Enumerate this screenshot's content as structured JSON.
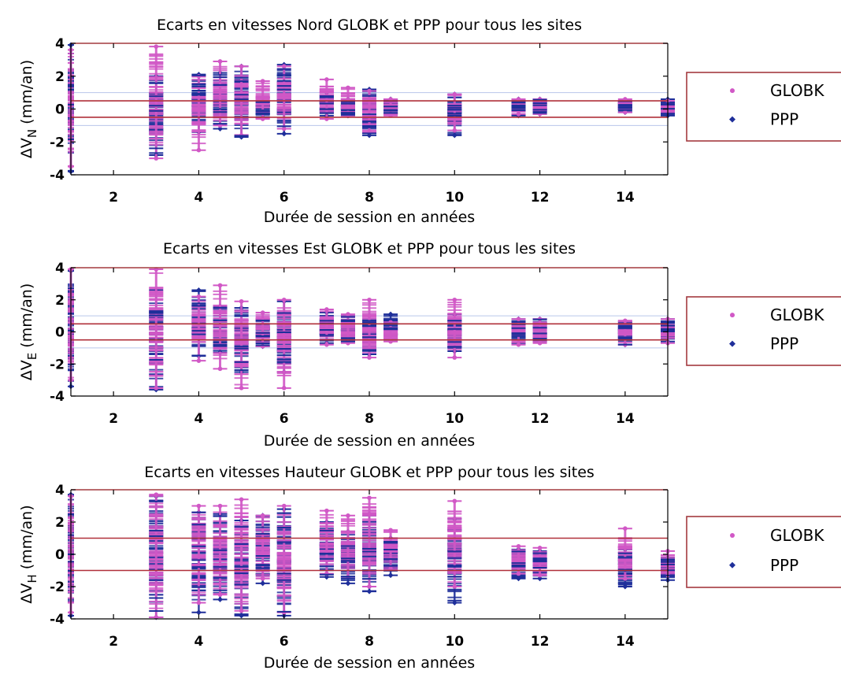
{
  "chart_data": [
    {
      "type": "scatter",
      "title": "Ecarts en vitesses Nord GLOBK et PPP pour tous les sites",
      "xlabel": "Durée de session en années",
      "ylabel_base": "ΔV",
      "ylabel_sub": "N",
      "ylabel_unit": " (mm/an)",
      "xlim": [
        1,
        15
      ],
      "ylim": [
        -4,
        4
      ],
      "xticks": [
        2,
        4,
        6,
        8,
        10,
        12,
        14
      ],
      "yticks": [
        4,
        2,
        0,
        -2,
        -4
      ],
      "hlines": [
        0.5,
        -0.5
      ],
      "legend": {
        "position": "outside-right",
        "entries": [
          "GLOBK",
          "PPP"
        ]
      },
      "series": [
        {
          "name": "GLOBK",
          "color": "#d158c6",
          "marker": "dot"
        },
        {
          "name": "PPP",
          "color": "#1f2f9a",
          "marker": "diamond"
        }
      ],
      "columns": [
        {
          "x": 1.0,
          "globk": [
            -3.5,
            3.6
          ],
          "ppp": [
            -3.8,
            3.9
          ]
        },
        {
          "x": 3.0,
          "globk": [
            -3.0,
            3.8
          ],
          "ppp": [
            -2.8,
            2.0
          ]
        },
        {
          "x": 4.0,
          "globk": [
            -2.5,
            2.0
          ],
          "ppp": [
            -1.4,
            2.1
          ]
        },
        {
          "x": 4.5,
          "globk": [
            -1.0,
            2.9
          ],
          "ppp": [
            -1.2,
            2.2
          ]
        },
        {
          "x": 5.0,
          "globk": [
            -1.6,
            2.6
          ],
          "ppp": [
            -1.7,
            2.6
          ]
        },
        {
          "x": 5.5,
          "globk": [
            -0.6,
            1.7
          ],
          "ppp": [
            -0.5,
            0.7
          ]
        },
        {
          "x": 6.0,
          "globk": [
            -1.2,
            2.6
          ],
          "ppp": [
            -1.5,
            2.7
          ]
        },
        {
          "x": 7.0,
          "globk": [
            -0.6,
            1.8
          ],
          "ppp": [
            -0.4,
            1.0
          ]
        },
        {
          "x": 7.5,
          "globk": [
            -0.4,
            1.3
          ],
          "ppp": [
            -0.4,
            0.6
          ]
        },
        {
          "x": 8.0,
          "globk": [
            -1.4,
            1.1
          ],
          "ppp": [
            -1.6,
            1.2
          ]
        },
        {
          "x": 8.5,
          "globk": [
            -0.4,
            0.6
          ],
          "ppp": [
            -0.3,
            0.6
          ]
        },
        {
          "x": 10.0,
          "globk": [
            -1.3,
            0.9
          ],
          "ppp": [
            -1.6,
            0.9
          ]
        },
        {
          "x": 11.5,
          "globk": [
            -0.3,
            0.6
          ],
          "ppp": [
            -0.4,
            0.6
          ]
        },
        {
          "x": 12.0,
          "globk": [
            -0.3,
            0.6
          ],
          "ppp": [
            -0.3,
            0.6
          ]
        },
        {
          "x": 14.0,
          "globk": [
            -0.2,
            0.6
          ],
          "ppp": [
            -0.2,
            0.5
          ]
        },
        {
          "x": 15.0,
          "globk": [
            -0.2,
            0.5
          ],
          "ppp": [
            -0.4,
            0.6
          ]
        }
      ]
    },
    {
      "type": "scatter",
      "title": "Ecarts en vitesses Est GLOBK et PPP pour tous les sites",
      "xlabel": "Durée de session en années",
      "ylabel_base": "ΔV",
      "ylabel_sub": "E",
      "ylabel_unit": " (mm/an)",
      "xlim": [
        1,
        15
      ],
      "ylim": [
        -4,
        4
      ],
      "xticks": [
        2,
        4,
        6,
        8,
        10,
        12,
        14
      ],
      "yticks": [
        4,
        2,
        0,
        -2,
        -4
      ],
      "hlines": [
        0.5,
        -0.5
      ],
      "legend": {
        "position": "outside-right",
        "entries": [
          "GLOBK",
          "PPP"
        ]
      },
      "series": [
        {
          "name": "GLOBK",
          "color": "#d158c6",
          "marker": "dot"
        },
        {
          "name": "PPP",
          "color": "#1f2f9a",
          "marker": "diamond"
        }
      ],
      "columns": [
        {
          "x": 1.0,
          "globk": [
            -3.0,
            3.9
          ],
          "ppp": [
            -3.4,
            3.8
          ]
        },
        {
          "x": 3.0,
          "globk": [
            -3.5,
            3.9
          ],
          "ppp": [
            -3.6,
            2.6
          ]
        },
        {
          "x": 4.0,
          "globk": [
            -1.8,
            2.2
          ],
          "ppp": [
            -1.5,
            2.6
          ]
        },
        {
          "x": 4.5,
          "globk": [
            -2.3,
            2.9
          ],
          "ppp": [
            -1.3,
            1.6
          ]
        },
        {
          "x": 5.0,
          "globk": [
            -3.5,
            1.9
          ],
          "ppp": [
            -2.5,
            1.5
          ]
        },
        {
          "x": 5.5,
          "globk": [
            -0.9,
            1.2
          ],
          "ppp": [
            -0.9,
            0.8
          ]
        },
        {
          "x": 6.0,
          "globk": [
            -3.5,
            2.0
          ],
          "ppp": [
            -2.5,
            1.9
          ]
        },
        {
          "x": 7.0,
          "globk": [
            -0.8,
            1.4
          ],
          "ppp": [
            -0.7,
            1.2
          ]
        },
        {
          "x": 7.5,
          "globk": [
            -0.7,
            1.1
          ],
          "ppp": [
            -0.6,
            1.0
          ]
        },
        {
          "x": 8.0,
          "globk": [
            -1.6,
            2.0
          ],
          "ppp": [
            -1.4,
            1.0
          ]
        },
        {
          "x": 8.5,
          "globk": [
            -0.6,
            0.6
          ],
          "ppp": [
            -0.5,
            1.1
          ]
        },
        {
          "x": 10.0,
          "globk": [
            -1.6,
            2.0
          ],
          "ppp": [
            -1.2,
            1.1
          ]
        },
        {
          "x": 11.5,
          "globk": [
            -0.8,
            0.8
          ],
          "ppp": [
            -0.7,
            0.8
          ]
        },
        {
          "x": 12.0,
          "globk": [
            -0.7,
            0.8
          ],
          "ppp": [
            -0.6,
            0.8
          ]
        },
        {
          "x": 14.0,
          "globk": [
            -0.8,
            0.7
          ],
          "ppp": [
            -0.8,
            0.6
          ]
        },
        {
          "x": 15.0,
          "globk": [
            -0.7,
            0.8
          ],
          "ppp": [
            -0.6,
            0.8
          ]
        }
      ]
    },
    {
      "type": "scatter",
      "title": "Ecarts en vitesses Hauteur GLOBK et PPP pour tous les sites",
      "xlabel": "Durée de session en années",
      "ylabel_base": "ΔV",
      "ylabel_sub": "H",
      "ylabel_unit": " (mm/an)",
      "xlim": [
        1,
        15
      ],
      "ylim": [
        -4,
        4
      ],
      "xticks": [
        2,
        4,
        6,
        8,
        10,
        12,
        14
      ],
      "yticks": [
        4,
        2,
        0,
        -2,
        -4
      ],
      "hlines": [
        1,
        -1
      ],
      "legend": {
        "position": "outside-right",
        "entries": [
          "GLOBK",
          "PPP"
        ]
      },
      "series": [
        {
          "name": "GLOBK",
          "color": "#d158c6",
          "marker": "dot"
        },
        {
          "name": "PPP",
          "color": "#1f2f9a",
          "marker": "diamond"
        }
      ],
      "columns": [
        {
          "x": 1.0,
          "globk": [
            -3.6,
            3.6
          ],
          "ppp": [
            -3.8,
            3.7
          ]
        },
        {
          "x": 3.0,
          "globk": [
            -3.9,
            3.7
          ],
          "ppp": [
            -3.9,
            3.6
          ]
        },
        {
          "x": 4.0,
          "globk": [
            -3.0,
            3.0
          ],
          "ppp": [
            -3.6,
            2.6
          ]
        },
        {
          "x": 4.5,
          "globk": [
            -2.5,
            3.0
          ],
          "ppp": [
            -2.8,
            2.5
          ]
        },
        {
          "x": 5.0,
          "globk": [
            -3.5,
            3.4
          ],
          "ppp": [
            -3.8,
            2.1
          ]
        },
        {
          "x": 5.5,
          "globk": [
            -1.5,
            2.4
          ],
          "ppp": [
            -1.8,
            2.4
          ]
        },
        {
          "x": 6.0,
          "globk": [
            -3.6,
            3.0
          ],
          "ppp": [
            -3.8,
            2.8
          ]
        },
        {
          "x": 7.0,
          "globk": [
            -1.2,
            2.7
          ],
          "ppp": [
            -1.4,
            2.0
          ]
        },
        {
          "x": 7.5,
          "globk": [
            -1.4,
            2.4
          ],
          "ppp": [
            -1.8,
            1.4
          ]
        },
        {
          "x": 8.0,
          "globk": [
            -2.0,
            3.5
          ],
          "ppp": [
            -2.3,
            2.5
          ]
        },
        {
          "x": 8.5,
          "globk": [
            -0.9,
            1.5
          ],
          "ppp": [
            -1.3,
            1.0
          ]
        },
        {
          "x": 10.0,
          "globk": [
            -2.0,
            3.3
          ],
          "ppp": [
            -3.0,
            2.2
          ]
        },
        {
          "x": 11.5,
          "globk": [
            -1.2,
            0.5
          ],
          "ppp": [
            -1.5,
            0.3
          ]
        },
        {
          "x": 12.0,
          "globk": [
            -1.3,
            0.4
          ],
          "ppp": [
            -1.5,
            0.2
          ]
        },
        {
          "x": 14.0,
          "globk": [
            -1.5,
            1.6
          ],
          "ppp": [
            -2.0,
            0.3
          ]
        },
        {
          "x": 15.0,
          "globk": [
            -1.3,
            0.2
          ],
          "ppp": [
            -1.6,
            -0.2
          ]
        }
      ]
    }
  ]
}
